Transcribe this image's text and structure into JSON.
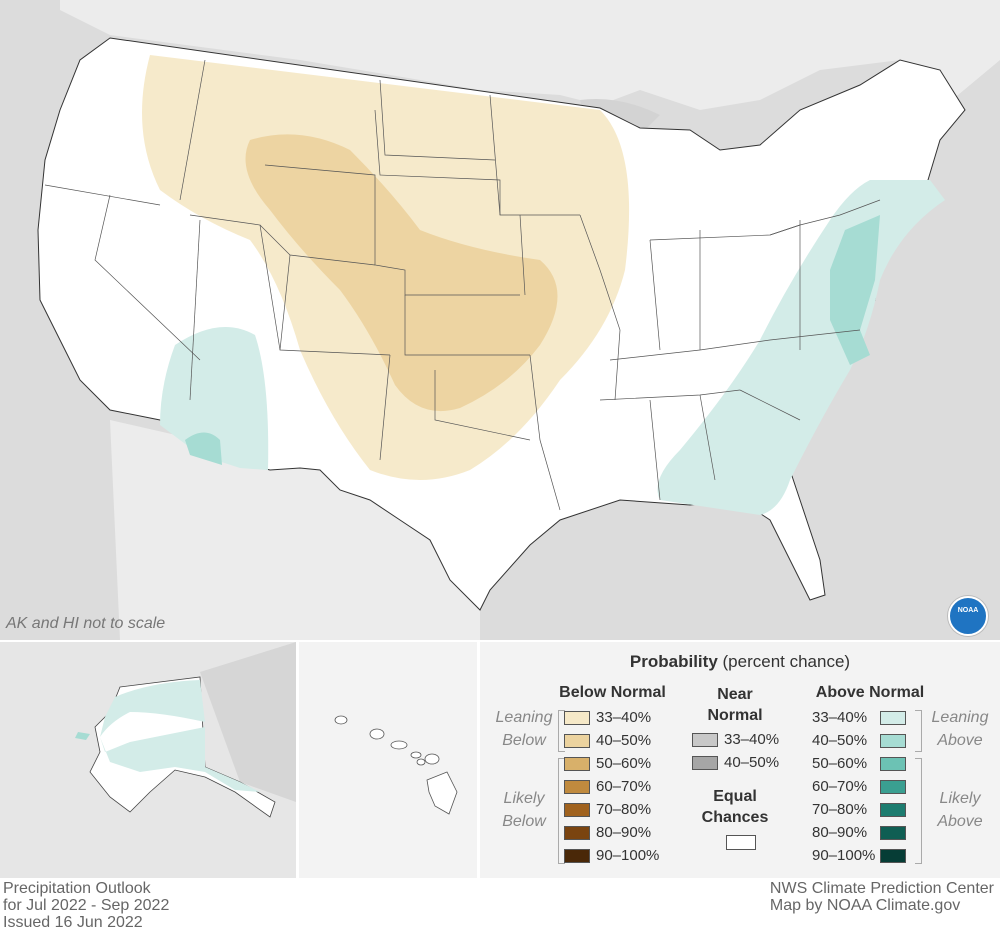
{
  "map": {
    "inset_note": "AK and HI not to scale"
  },
  "legend": {
    "title_bold": "Probability",
    "title_rest": " (percent chance)",
    "below_normal": {
      "heading": "Below Normal",
      "leaning_label_1": "Leaning",
      "leaning_label_2": "Below",
      "likely_label_1": "Likely",
      "likely_label_2": "Below",
      "rows": [
        {
          "label": "33–40%",
          "color": "#f6e9c8"
        },
        {
          "label": "40–50%",
          "color": "#ecd39f"
        },
        {
          "label": "50–60%",
          "color": "#d8b06a"
        },
        {
          "label": "60–70%",
          "color": "#c08a3e"
        },
        {
          "label": "70–80%",
          "color": "#a0621e"
        },
        {
          "label": "80–90%",
          "color": "#7a4410"
        },
        {
          "label": "90–100%",
          "color": "#4a2808"
        }
      ]
    },
    "near_normal": {
      "heading_1": "Near",
      "heading_2": "Normal",
      "rows": [
        {
          "label": "33–40%",
          "color": "#c8c8c8"
        },
        {
          "label": "40–50%",
          "color": "#a6a6a6"
        }
      ],
      "equal_1": "Equal",
      "equal_2": "Chances",
      "equal_color": "#ffffff"
    },
    "above_normal": {
      "heading": "Above Normal",
      "leaning_label_1": "Leaning",
      "leaning_label_2": "Above",
      "likely_label_1": "Likely",
      "likely_label_2": "Above",
      "rows": [
        {
          "label": "33–40%",
          "color": "#d3ece8"
        },
        {
          "label": "40–50%",
          "color": "#a6dcd3"
        },
        {
          "label": "50–60%",
          "color": "#6cc2b4"
        },
        {
          "label": "60–70%",
          "color": "#3a9f91"
        },
        {
          "label": "70–80%",
          "color": "#1d7c6f"
        },
        {
          "label": "80–90%",
          "color": "#0f5e53"
        },
        {
          "label": "90–100%",
          "color": "#063d36"
        }
      ]
    }
  },
  "footer": {
    "left_1": "Precipitation Outlook",
    "left_2": "for Jul 2022 - Sep 2022",
    "left_3": "Issued 16 Jun 2022",
    "right_1": "NWS Climate Prediction Center",
    "right_2": "Map by NOAA Climate.gov"
  }
}
